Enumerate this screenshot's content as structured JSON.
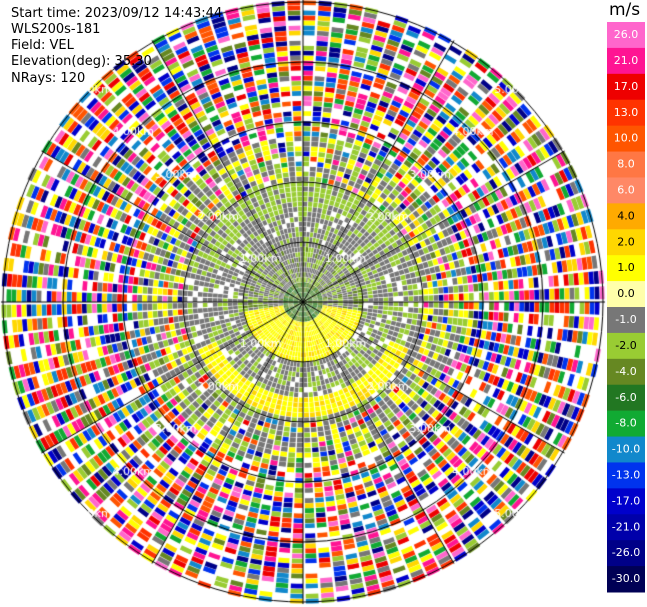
{
  "header": {
    "start_time": "Start time: 2023/09/12 14:43:44",
    "instrument": "WLS200s-181",
    "field": "Field: VEL",
    "elevation": "Elevation(deg): 35.30",
    "nrays": "NRays: 120"
  },
  "ring_labels": {
    "r1": "1.00km",
    "r2": "2.00km",
    "r3": "3.00km",
    "r4": "4.00km",
    "r5": "5.00km"
  },
  "colorbar": {
    "unit": "m/s",
    "ticks": [
      "26.0",
      "21.0",
      "17.0",
      "13.0",
      "10.0",
      "8.0",
      "6.0",
      "4.0",
      "2.0",
      "1.0",
      "0.0",
      "-1.0",
      "-2.0",
      "-4.0",
      "-6.0",
      "-8.0",
      "-10.0",
      "-13.0",
      "-17.0",
      "-21.0",
      "-26.0",
      "-30.0"
    ],
    "colors": [
      "#ff66cc",
      "#ff1493",
      "#ee0000",
      "#ff3300",
      "#ff5500",
      "#ff7744",
      "#ff8866",
      "#ffaa00",
      "#ffd700",
      "#ffff00",
      "#ffffaa",
      "#777777",
      "#99cc33",
      "#668822",
      "#227722",
      "#11aa33",
      "#1188cc",
      "#0033ee",
      "#0000cc",
      "#0000aa",
      "#000088",
      "#000055"
    ]
  }
}
